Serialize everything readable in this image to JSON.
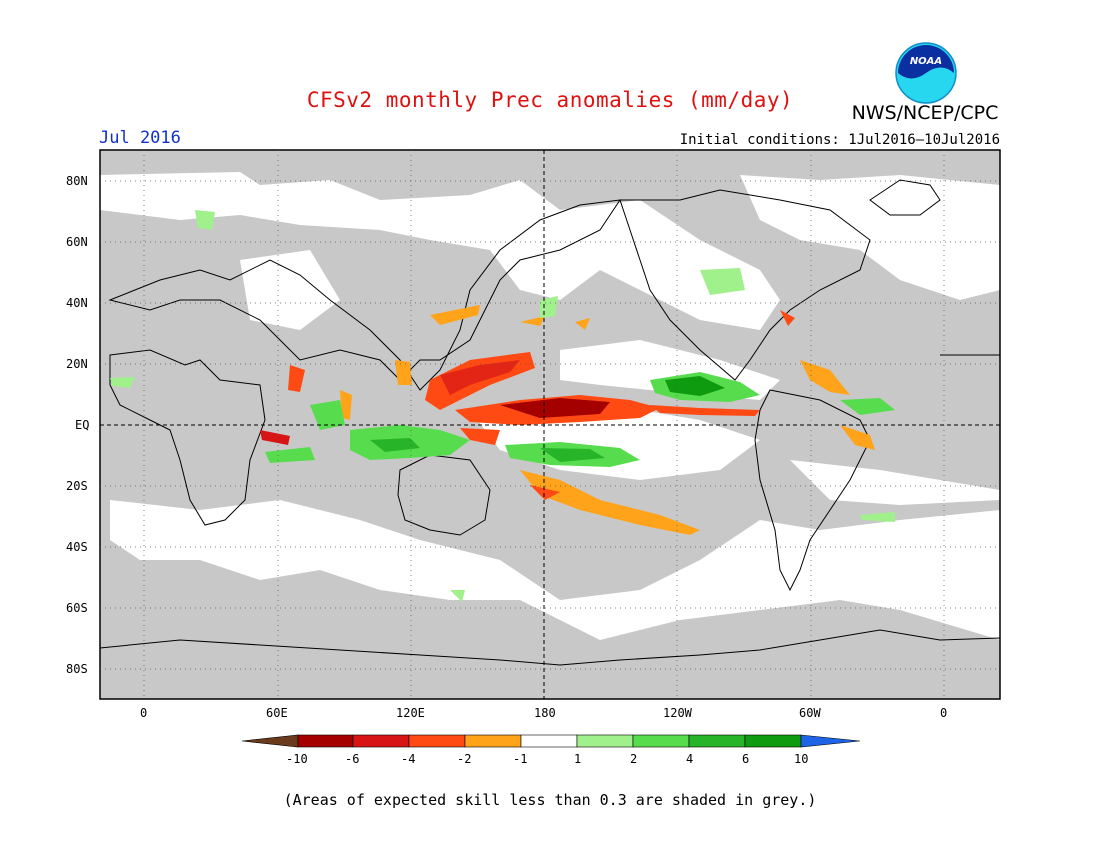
{
  "header": {
    "title": "CFSv2 monthly Prec anomalies (mm/day)",
    "month": "Jul 2016",
    "initial_conditions": "Initial conditions: 1Jul2016—10Jul2016",
    "agency": "NWS/NCEP/CPC",
    "logo_text": "NOAA"
  },
  "map": {
    "lat_labels": [
      "80N",
      "60N",
      "40N",
      "20N",
      "EQ",
      "20S",
      "40S",
      "60S",
      "80S"
    ],
    "lon_labels": [
      "0",
      "60E",
      "120E",
      "180",
      "120W",
      "60W",
      "0"
    ],
    "grey_shading_color": "#c8c8c8",
    "equator_line": "dashed",
    "dateline": "dashed"
  },
  "colorbar": {
    "labels": [
      "-10",
      "-6",
      "-4",
      "-2",
      "-1",
      "1",
      "2",
      "4",
      "6",
      "10"
    ],
    "colors": [
      "#6b3a1c",
      "#a50000",
      "#d71515",
      "#ff4a14",
      "#ffa31a",
      "#ffffff",
      "#a0f08c",
      "#56dc4c",
      "#28b428",
      "#0f9b0f",
      "#1e64e6"
    ]
  },
  "footnote": "(Areas of expected skill less than 0.3 are shaded in grey.)"
}
